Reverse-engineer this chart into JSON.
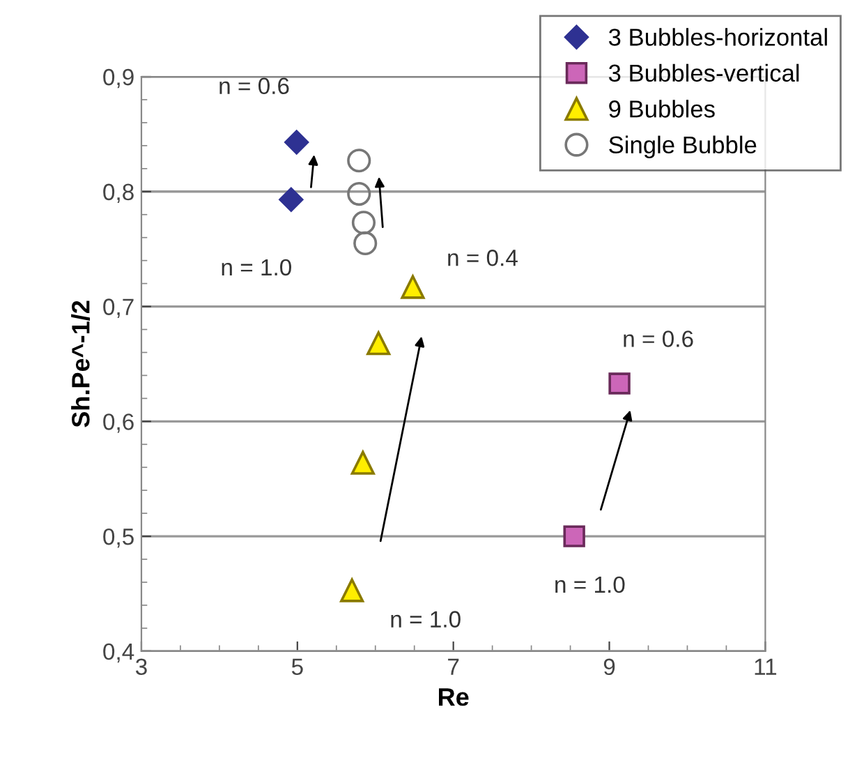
{
  "chart_data": {
    "type": "scatter",
    "xlabel": "Re",
    "ylabel": "Sh.Pe^-1/2",
    "xlim": [
      3,
      11
    ],
    "xticks": [
      3,
      5,
      7,
      9,
      11
    ],
    "ylim": [
      0.4,
      0.9
    ],
    "yticks": [
      {
        "value": 0.4,
        "label": "0,4"
      },
      {
        "value": 0.5,
        "label": "0,5"
      },
      {
        "value": 0.6,
        "label": "0,6"
      },
      {
        "value": 0.7,
        "label": "0,7"
      },
      {
        "value": 0.8,
        "label": "0,8"
      },
      {
        "value": 0.9,
        "label": "0,9"
      }
    ],
    "grid": "y",
    "legend": "top right",
    "series": [
      {
        "name": "3 Bubbles-horizontal",
        "color": "#2e3192",
        "marker": "diamond",
        "x": [
          4.99,
          4.92
        ],
        "values": [
          0.843,
          0.793
        ]
      },
      {
        "name": "3 Bubbles-vertical",
        "color": "#cc66b8",
        "marker": "square",
        "x": [
          9.13,
          8.55
        ],
        "values": [
          0.633,
          0.5
        ]
      },
      {
        "name": "9 Bubbles",
        "color": "#ffee00",
        "marker": "triangle",
        "x": [
          6.48,
          6.04,
          5.84,
          5.7
        ],
        "values": [
          0.717,
          0.668,
          0.564,
          0.453
        ]
      },
      {
        "name": "Single Bubble",
        "color": "#777777",
        "marker": "circle",
        "x": [
          5.79,
          5.79,
          5.85,
          5.87
        ],
        "values": [
          0.827,
          0.798,
          0.773,
          0.755
        ]
      }
    ],
    "annotations": [
      {
        "text": "n = 0.6",
        "x": 4.99,
        "y": 0.843
      },
      {
        "text": "n = 1.0",
        "x": 4.92,
        "y": 0.793
      },
      {
        "text": "n = 0.4",
        "x": 6.48,
        "y": 0.717
      },
      {
        "text": "n = 1.0",
        "x": 5.7,
        "y": 0.453
      },
      {
        "text": "n = 0.6",
        "x": 9.13,
        "y": 0.633
      },
      {
        "text": "n = 1.0",
        "x": 8.55,
        "y": 0.5
      }
    ]
  }
}
